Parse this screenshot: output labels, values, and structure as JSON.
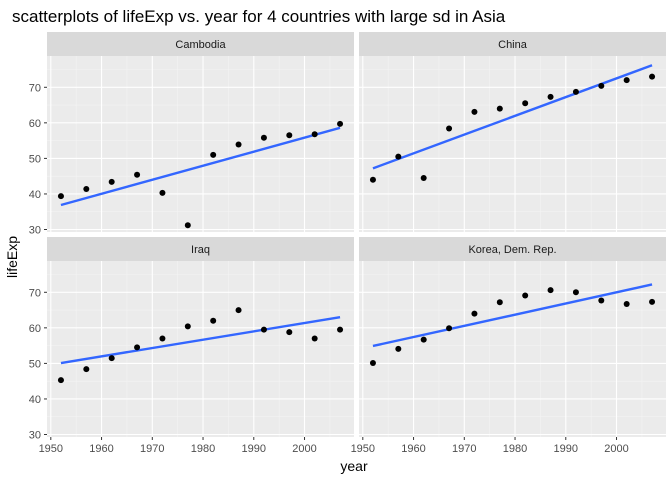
{
  "chart_data": {
    "type": "scatter",
    "title": "scatterplots of lifeExp vs. year for 4 countries with large sd in Asia",
    "xlabel": "year",
    "ylabel": "lifeExp",
    "xlim": [
      1949.25,
      2009.75
    ],
    "ylim": [
      29.3,
      78.8
    ],
    "x_ticks": [
      1950,
      1960,
      1970,
      1980,
      1990,
      2000
    ],
    "y_ticks": [
      30,
      40,
      50,
      60,
      70
    ],
    "grid": true,
    "legend": "none",
    "point_color": "#000000",
    "line_color": "#3366FF",
    "panel_bg": "#EBEBEB",
    "strip_bg": "#D9D9D9",
    "x": [
      1952,
      1957,
      1962,
      1967,
      1972,
      1977,
      1982,
      1987,
      1992,
      1997,
      2002,
      2007
    ],
    "panels": [
      {
        "name": "Cambodia",
        "values": [
          39.4,
          41.4,
          43.4,
          45.4,
          40.3,
          31.2,
          51.0,
          53.9,
          55.8,
          56.5,
          56.8,
          59.7
        ],
        "fit": [
          [
            1952,
            36.9
          ],
          [
            2007,
            58.6
          ]
        ]
      },
      {
        "name": "China",
        "values": [
          44.0,
          50.5,
          44.5,
          58.4,
          63.1,
          64.0,
          65.5,
          67.3,
          68.7,
          70.4,
          72.0,
          73.0
        ],
        "fit": [
          [
            1952,
            47.2
          ],
          [
            2007,
            76.2
          ]
        ]
      },
      {
        "name": "Iraq",
        "values": [
          45.3,
          48.4,
          51.5,
          54.5,
          57.0,
          60.4,
          62.0,
          65.0,
          59.5,
          58.8,
          57.0,
          59.5
        ],
        "fit": [
          [
            1952,
            50.1
          ],
          [
            2007,
            63.0
          ]
        ]
      },
      {
        "name": "Korea, Dem. Rep.",
        "values": [
          50.1,
          54.1,
          56.7,
          59.9,
          64.0,
          67.2,
          69.1,
          70.6,
          70.0,
          67.7,
          66.7,
          67.3
        ],
        "fit": [
          [
            1952,
            54.9
          ],
          [
            2007,
            72.2
          ]
        ]
      }
    ]
  }
}
